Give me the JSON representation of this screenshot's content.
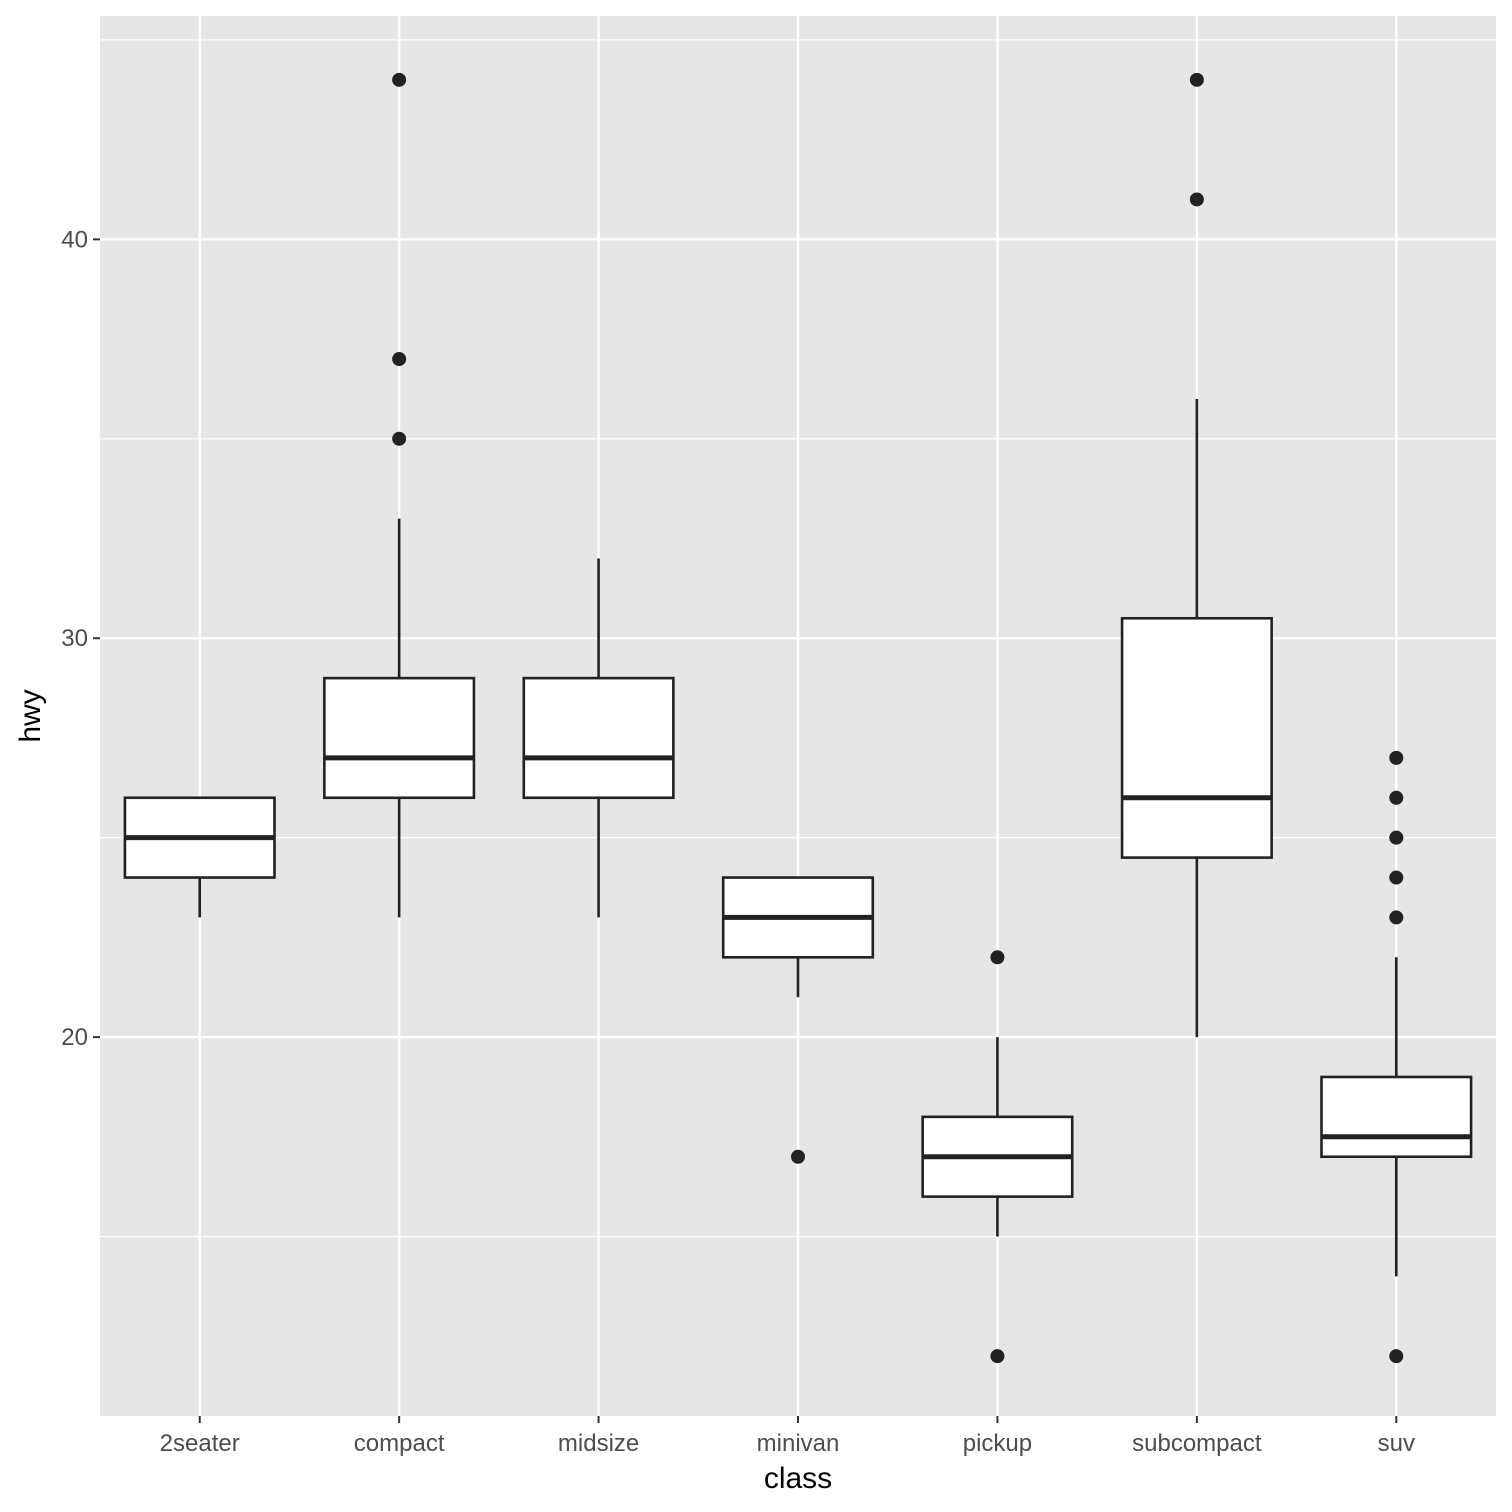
{
  "chart_data": {
    "type": "boxplot",
    "title": "",
    "xlabel": "class",
    "ylabel": "hwy",
    "ylim": [
      10.5,
      45.6
    ],
    "yticks": [
      20,
      30,
      40
    ],
    "grid": true,
    "colors": {
      "panel": "#e6e6e6",
      "grid": "#ffffff",
      "box_fill": "#ffffff",
      "stroke": "#222222",
      "outlier": "#222222",
      "tick_text": "#4d4d4d",
      "axis_title": "#000000"
    },
    "categories": [
      "2seater",
      "compact",
      "midsize",
      "minivan",
      "pickup",
      "subcompact",
      "suv"
    ],
    "boxes": [
      {
        "category": "2seater",
        "lower_whisker": 23,
        "q1": 24,
        "median": 25,
        "q3": 26,
        "upper_whisker": 26,
        "outliers": []
      },
      {
        "category": "compact",
        "lower_whisker": 23,
        "q1": 26,
        "median": 27,
        "q3": 29,
        "upper_whisker": 33,
        "outliers": [
          35,
          37,
          44
        ]
      },
      {
        "category": "midsize",
        "lower_whisker": 23,
        "q1": 26,
        "median": 27,
        "q3": 29,
        "upper_whisker": 32,
        "outliers": []
      },
      {
        "category": "minivan",
        "lower_whisker": 21,
        "q1": 22,
        "median": 23,
        "q3": 24,
        "upper_whisker": 24,
        "outliers": [
          17
        ]
      },
      {
        "category": "pickup",
        "lower_whisker": 15,
        "q1": 16,
        "median": 17,
        "q3": 18,
        "upper_whisker": 20,
        "outliers": [
          12,
          22
        ]
      },
      {
        "category": "subcompact",
        "lower_whisker": 20,
        "q1": 24.5,
        "median": 26,
        "q3": 30.5,
        "upper_whisker": 36,
        "outliers": [
          41,
          44
        ]
      },
      {
        "category": "suv",
        "lower_whisker": 14,
        "q1": 17,
        "median": 17.5,
        "q3": 19,
        "upper_whisker": 22,
        "outliers": [
          12,
          23,
          24,
          25,
          26,
          27
        ]
      }
    ]
  }
}
